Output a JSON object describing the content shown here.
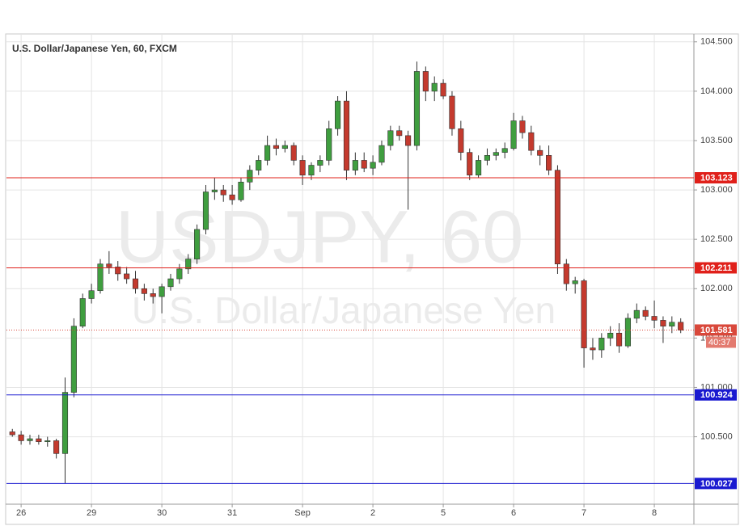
{
  "chart_data": {
    "type": "candlestick",
    "title": "U.S. Dollar/Japanese Yen, 60, FXCM",
    "watermark": "USDJPY, 60",
    "watermark_subtitle": "U.S. Dollar/Japanese Yen",
    "x": [
      2,
      5,
      8,
      11,
      14,
      17,
      20,
      23,
      26,
      29,
      32,
      35,
      38,
      41,
      44,
      47,
      50,
      53,
      56,
      59,
      62,
      65,
      68,
      71,
      74,
      77,
      80,
      83,
      86,
      89,
      92,
      95,
      98,
      101,
      104,
      107,
      110,
      113,
      116,
      119,
      122,
      125,
      128,
      131,
      134,
      137,
      140,
      143,
      146,
      149,
      152,
      155,
      158,
      161,
      164,
      167,
      170,
      173,
      176,
      179,
      182,
      185,
      188,
      191,
      194,
      197,
      200,
      203,
      206,
      209,
      212,
      215,
      218,
      221,
      224,
      227,
      230
    ],
    "open": [
      100.55,
      100.52,
      100.46,
      100.48,
      100.45,
      100.46,
      100.33,
      100.95,
      101.62,
      101.9,
      101.98,
      102.25,
      102.22,
      102.15,
      102.1,
      102.0,
      101.95,
      101.92,
      102.02,
      102.1,
      102.2,
      102.3,
      102.6,
      102.98,
      103.0,
      102.95,
      102.9,
      103.08,
      103.2,
      103.3,
      103.45,
      103.42,
      103.45,
      103.3,
      103.15,
      103.25,
      103.3,
      103.62,
      103.9,
      103.2,
      103.3,
      103.22,
      103.28,
      103.45,
      103.6,
      103.55,
      103.45,
      104.2,
      104.0,
      104.08,
      103.95,
      103.62,
      103.38,
      103.15,
      103.3,
      103.35,
      103.38,
      103.42,
      103.7,
      103.58,
      103.4,
      103.35,
      103.2,
      102.25,
      102.05,
      102.08,
      101.4,
      101.38,
      101.5,
      101.55,
      101.42,
      101.7,
      101.78,
      101.72,
      101.68,
      101.62,
      101.66
    ],
    "high": [
      100.58,
      100.56,
      100.52,
      100.52,
      100.5,
      100.48,
      101.1,
      101.7,
      101.95,
      102.05,
      102.3,
      102.38,
      102.28,
      102.22,
      102.18,
      102.05,
      102.0,
      102.05,
      102.15,
      102.25,
      102.35,
      102.65,
      103.05,
      103.12,
      103.05,
      103.05,
      103.12,
      103.25,
      103.35,
      103.55,
      103.52,
      103.5,
      103.48,
      103.35,
      103.28,
      103.35,
      103.7,
      103.95,
      104.0,
      103.38,
      103.38,
      103.35,
      103.5,
      103.65,
      103.65,
      103.6,
      104.3,
      104.25,
      104.15,
      104.12,
      104.0,
      103.7,
      103.42,
      103.35,
      103.42,
      103.42,
      103.48,
      103.78,
      103.75,
      103.65,
      103.45,
      103.45,
      103.25,
      102.3,
      102.12,
      102.1,
      101.5,
      101.55,
      101.62,
      101.65,
      101.75,
      101.85,
      101.82,
      101.88,
      101.72,
      101.72,
      101.7
    ],
    "low": [
      100.5,
      100.42,
      100.42,
      100.42,
      100.4,
      100.28,
      100.03,
      100.9,
      101.6,
      101.85,
      101.95,
      102.15,
      102.08,
      102.05,
      101.95,
      101.88,
      101.85,
      101.75,
      101.98,
      102.05,
      102.15,
      102.25,
      102.55,
      102.9,
      102.88,
      102.85,
      102.88,
      103.0,
      103.15,
      103.25,
      103.35,
      103.38,
      103.25,
      103.05,
      103.1,
      103.18,
      103.25,
      103.55,
      103.1,
      103.15,
      103.18,
      103.15,
      103.25,
      103.4,
      103.5,
      102.8,
      103.4,
      103.9,
      103.9,
      103.92,
      103.55,
      103.3,
      103.1,
      103.12,
      103.25,
      103.3,
      103.32,
      103.4,
      103.52,
      103.35,
      103.25,
      103.15,
      102.15,
      101.98,
      101.95,
      101.2,
      101.28,
      101.3,
      101.42,
      101.35,
      101.4,
      101.65,
      101.68,
      101.6,
      101.45,
      101.55,
      101.55
    ],
    "close": [
      100.52,
      100.46,
      100.48,
      100.45,
      100.46,
      100.33,
      100.95,
      101.62,
      101.9,
      101.98,
      102.25,
      102.22,
      102.15,
      102.1,
      102.0,
      101.95,
      101.92,
      102.02,
      102.1,
      102.2,
      102.3,
      102.6,
      102.98,
      103.0,
      102.95,
      102.9,
      103.08,
      103.2,
      103.3,
      103.45,
      103.42,
      103.45,
      103.3,
      103.15,
      103.25,
      103.3,
      103.62,
      103.9,
      103.2,
      103.3,
      103.22,
      103.28,
      103.45,
      103.6,
      103.55,
      103.45,
      104.2,
      104.0,
      104.08,
      103.95,
      103.62,
      103.38,
      103.15,
      103.3,
      103.35,
      103.38,
      103.42,
      103.7,
      103.58,
      103.4,
      103.35,
      103.2,
      102.25,
      102.05,
      102.08,
      101.4,
      101.38,
      101.5,
      101.55,
      101.42,
      101.7,
      101.78,
      101.72,
      101.68,
      101.62,
      101.66,
      101.58
    ],
    "up_color": "#3f9e3f",
    "down_color": "#c43a2e",
    "xlim": [
      0,
      234.5
    ],
    "ylim": [
      99.85,
      104.58
    ],
    "xticks": [
      {
        "value": 5,
        "label": "26"
      },
      {
        "value": 29,
        "label": "29"
      },
      {
        "value": 53,
        "label": "30"
      },
      {
        "value": 77,
        "label": "31"
      },
      {
        "value": 101,
        "label": "Sep"
      },
      {
        "value": 125,
        "label": "2"
      },
      {
        "value": 149,
        "label": "5"
      },
      {
        "value": 173,
        "label": "6"
      },
      {
        "value": 197,
        "label": "7"
      },
      {
        "value": 221,
        "label": "8"
      }
    ],
    "yticks": [
      {
        "value": 100.5,
        "label": "100.500"
      },
      {
        "value": 101,
        "label": "101.000"
      },
      {
        "value": 101.5,
        "label": "101.500"
      },
      {
        "value": 102,
        "label": "102.000"
      },
      {
        "value": 102.5,
        "label": "102.500"
      },
      {
        "value": 103,
        "label": "103.000"
      },
      {
        "value": 103.5,
        "label": "103.500"
      },
      {
        "value": 104,
        "label": "104.000"
      },
      {
        "value": 104.5,
        "label": "104.500"
      }
    ],
    "grid": true,
    "levels": [
      {
        "value": 103.123,
        "color": "#e0201a",
        "style": "solid"
      },
      {
        "value": 102.211,
        "color": "#e0201a",
        "style": "solid"
      },
      {
        "value": 100.924,
        "color": "#1a1ad0",
        "style": "solid"
      },
      {
        "value": 100.027,
        "color": "#1a1ad0",
        "style": "solid"
      },
      {
        "value": 101.581,
        "color": "#d9483b",
        "style": "dotted"
      }
    ],
    "countdown": "40:37"
  }
}
